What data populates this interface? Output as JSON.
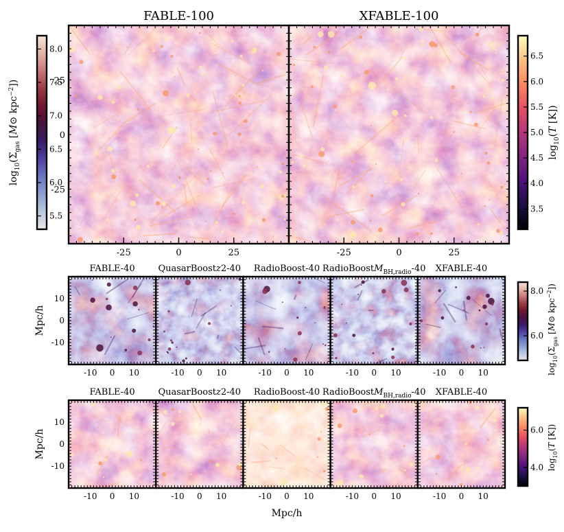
{
  "colors": {
    "fable": "#8b2a8f",
    "quasar": "#2fb6e6",
    "radio": "#f3c11b",
    "mbh": "#2fcf2f",
    "xfable": "#1f7a1f",
    "dens_map": [
      "#eae6ea",
      "#b8c8e0",
      "#8aa0d0",
      "#6878c0",
      "#5040a0",
      "#3a1c6a",
      "#4a1240",
      "#701830",
      "#9a3a44",
      "#c8787a",
      "#e4b4a4",
      "#f4e6dc"
    ],
    "temp_map": [
      "#000004",
      "#1c1044",
      "#4f127b",
      "#812581",
      "#b5367a",
      "#e55064",
      "#fb8761",
      "#fec287",
      "#fcfdbf"
    ]
  },
  "chart_data": [
    {
      "type": "heatmap",
      "panel": "top",
      "titles": [
        "FABLE-100",
        "XFABLE-100"
      ],
      "xticks": [
        "-25",
        "0",
        "25"
      ],
      "yticks": [
        "25",
        "0",
        "-25"
      ],
      "xlim": [
        -50,
        50
      ],
      "ylim": [
        -50,
        50
      ],
      "left_colorbar": {
        "label": "log10(Σ_gas [M⊙ kpc^-2])",
        "label_text": "log",
        "ticks": [
          "8.0",
          "7.5",
          "7.0",
          "6.5",
          "6.0",
          "5.5"
        ],
        "range": [
          5.3,
          8.2
        ]
      },
      "right_colorbar": {
        "label": "log10(T [K])",
        "label_text": "log",
        "ticks": [
          "6.5",
          "6.0",
          "5.5",
          "5.0",
          "4.5",
          "4.0",
          "3.5"
        ],
        "range": [
          3.1,
          6.9
        ]
      }
    },
    {
      "type": "heatmap",
      "panel": "middle-density",
      "titles": [
        "FABLE-40",
        "QuasarBoostz2-40",
        "RadioBoost-40",
        "RadioBoostMBH,radio-40",
        "XFABLE-40"
      ],
      "xticks": [
        "-10",
        "0",
        "10"
      ],
      "yticks": [
        "10",
        "0",
        "-10"
      ],
      "ylabel": "Mpc/h",
      "xlim": [
        -20,
        20
      ],
      "ylim": [
        -20,
        20
      ],
      "colorbar": {
        "label": "log10(Σ_gas [M⊙ kpc^-2])",
        "label_text": "log",
        "ticks": [
          "8.0",
          "6.0"
        ],
        "range": [
          4.9,
          8.4
        ]
      }
    },
    {
      "type": "heatmap",
      "panel": "bottom-temperature",
      "titles": [
        "FABLE-40",
        "QuasarBoostz2-40",
        "RadioBoost-40",
        "RadioBoostMBH,radio-40",
        "XFABLE-40"
      ],
      "xticks": [
        "-10",
        "0",
        "10"
      ],
      "yticks": [
        "10",
        "0",
        "-10"
      ],
      "ylabel": "Mpc/h",
      "xlabel": "Mpc/h",
      "xlim": [
        -20,
        20
      ],
      "ylim": [
        -20,
        20
      ],
      "colorbar": {
        "label": "log10(T [K])",
        "label_text": "log",
        "ticks": [
          "6.0",
          "4.0"
        ],
        "range": [
          3.0,
          7.2
        ]
      }
    }
  ],
  "labels": {
    "xlabel": "Mpc/h",
    "ylabel": "Mpc/h",
    "sigma_sub": "gas",
    "msun": "M",
    "kpc": "kpc",
    "exp": "−2",
    "T": "T",
    "K": "[K])",
    "ten": "10",
    "q_pre": "QuasarBoost",
    "q_z": "z",
    "q_post": "2-40",
    "r_pre": "RadioBoost",
    "r_M": "M",
    "r_sub": "BH,radio",
    "r_post": "-40"
  }
}
